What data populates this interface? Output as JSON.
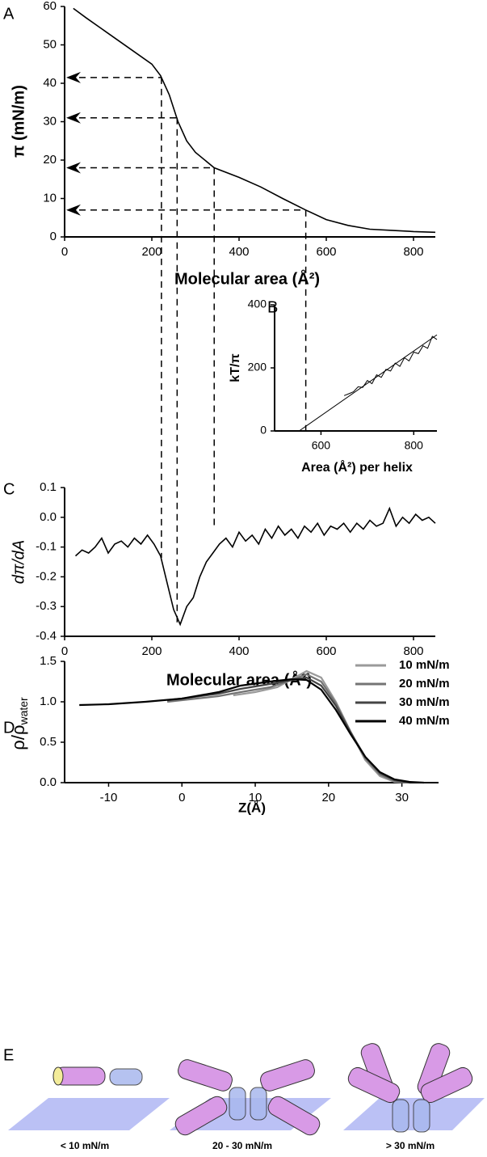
{
  "chart_data": [
    {
      "type": "line",
      "panel": "A",
      "y_label": "π (mN/m)",
      "x_label": "Molecular area (Å²)",
      "xlim": [
        0,
        850
      ],
      "ylim": [
        0,
        60
      ],
      "xticks": [
        0,
        200,
        400,
        600,
        800
      ],
      "yticks": [
        0,
        10,
        20,
        30,
        40,
        50,
        60
      ],
      "series": [
        {
          "color": "#000000",
          "x": [
            20,
            50,
            100,
            150,
            200,
            220,
            240,
            260,
            280,
            300,
            343,
            400,
            450,
            500,
            553,
            600,
            650,
            700,
            750,
            800,
            850
          ],
          "values": [
            59.5,
            57,
            53,
            49,
            45,
            42,
            37,
            30,
            25,
            22,
            18,
            15.5,
            13,
            10,
            7,
            4.5,
            3,
            2,
            1.7,
            1.4,
            1.2
          ]
        }
      ],
      "guides": [
        {
          "x": 222,
          "y": 41.5
        },
        {
          "x": 258,
          "y": 31
        },
        {
          "x": 343,
          "y": 18
        },
        {
          "x": 553,
          "y": 7
        }
      ]
    },
    {
      "type": "line",
      "panel": "B",
      "y_label": "kT/π",
      "x_label": "Area (Å²) per helix",
      "xlim": [
        500,
        850
      ],
      "ylim": [
        0,
        400
      ],
      "xticks": [
        600,
        800
      ],
      "yticks": [
        0,
        200,
        400
      ],
      "series": [
        {
          "color": "#000000",
          "x": [
            650,
            660,
            670,
            680,
            690,
            700,
            710,
            720,
            730,
            740,
            750,
            760,
            770,
            780,
            790,
            800,
            810,
            820,
            830,
            840,
            850
          ],
          "values": [
            112,
            118,
            124,
            140,
            138,
            160,
            150,
            178,
            170,
            195,
            190,
            215,
            205,
            232,
            222,
            250,
            245,
            270,
            262,
            300,
            290
          ]
        },
        {
          "color": "#000000",
          "x": [
            553,
            850
          ],
          "values": [
            0,
            305
          ]
        }
      ]
    },
    {
      "type": "line",
      "panel": "C",
      "y_label": "dπ/dA",
      "x_label": "Molecular area (Å²)",
      "xlim": [
        0,
        850
      ],
      "ylim": [
        -0.4,
        0.1
      ],
      "xticks": [
        0,
        200,
        400,
        600,
        800
      ],
      "yticks": [
        0.1,
        {
          "value": 0,
          "label": "0.0"
        },
        -0.1,
        -0.2,
        -0.3,
        -0.4
      ],
      "series": [
        {
          "color": "#000000",
          "x": [
            25,
            40,
            55,
            70,
            85,
            100,
            115,
            130,
            145,
            160,
            175,
            190,
            205,
            220,
            235,
            250,
            265,
            280,
            295,
            310,
            325,
            340,
            355,
            370,
            385,
            400,
            415,
            430,
            445,
            460,
            475,
            490,
            505,
            520,
            535,
            550,
            565,
            580,
            595,
            610,
            625,
            640,
            655,
            670,
            685,
            700,
            715,
            730,
            745,
            760,
            775,
            790,
            805,
            820,
            835,
            850
          ],
          "values": [
            -0.13,
            -0.11,
            -0.12,
            -0.1,
            -0.07,
            -0.12,
            -0.09,
            -0.08,
            -0.1,
            -0.07,
            -0.09,
            -0.06,
            -0.09,
            -0.13,
            -0.22,
            -0.31,
            -0.36,
            -0.3,
            -0.27,
            -0.2,
            -0.15,
            -0.12,
            -0.09,
            -0.07,
            -0.1,
            -0.05,
            -0.08,
            -0.06,
            -0.09,
            -0.04,
            -0.07,
            -0.03,
            -0.06,
            -0.04,
            -0.07,
            -0.03,
            -0.05,
            -0.02,
            -0.06,
            -0.03,
            -0.04,
            -0.02,
            -0.05,
            -0.02,
            -0.04,
            -0.01,
            -0.03,
            -0.02,
            0.03,
            -0.03,
            0.0,
            -0.02,
            0.01,
            -0.01,
            0.0,
            -0.02
          ]
        }
      ]
    },
    {
      "type": "line",
      "panel": "D",
      "y_label": "ρ/ρ",
      "y_label_sub": "water",
      "x_label": "Z(Å)",
      "xlim": [
        -16,
        35
      ],
      "ylim": [
        0,
        1.5
      ],
      "xticks": [
        -10,
        0,
        10,
        20,
        30
      ],
      "yticks": [
        {
          "value": 0,
          "label": "0.0"
        },
        0.5,
        {
          "value": 1,
          "label": "1.0"
        },
        1.5
      ],
      "series": [
        {
          "name": "10 mN/m",
          "color": "#9a9a9a",
          "x": [
            7,
            10,
            13,
            15,
            17,
            19,
            21,
            23,
            25,
            27,
            29,
            31
          ],
          "values": [
            1.08,
            1.12,
            1.18,
            1.28,
            1.38,
            1.3,
            1.0,
            0.63,
            0.28,
            0.08,
            0.01,
            0.0
          ]
        },
        {
          "name": "20 mN/m",
          "color": "#747474",
          "x": [
            -2,
            0,
            5,
            8,
            12,
            15,
            17,
            19,
            21,
            23,
            25,
            27,
            29,
            31
          ],
          "values": [
            1.0,
            1.02,
            1.07,
            1.12,
            1.18,
            1.27,
            1.34,
            1.25,
            0.98,
            0.63,
            0.3,
            0.1,
            0.02,
            0.0
          ]
        },
        {
          "name": "30 mN/m",
          "color": "#444444",
          "x": [
            -2,
            0,
            5,
            8,
            12,
            15,
            17,
            19,
            21,
            23,
            25,
            27,
            29,
            31
          ],
          "values": [
            1.02,
            1.04,
            1.1,
            1.16,
            1.22,
            1.27,
            1.3,
            1.2,
            0.95,
            0.62,
            0.32,
            0.12,
            0.03,
            0.0
          ]
        },
        {
          "name": "40 mN/m",
          "color": "#000000",
          "x": [
            -14,
            -10,
            -5,
            0,
            5,
            8,
            12,
            15,
            17,
            19,
            21,
            23,
            25,
            27,
            29,
            31,
            33
          ],
          "values": [
            0.96,
            0.97,
            1.0,
            1.04,
            1.12,
            1.2,
            1.25,
            1.28,
            1.27,
            1.15,
            0.9,
            0.6,
            0.32,
            0.13,
            0.04,
            0.01,
            0.0
          ]
        }
      ]
    }
  ],
  "schematic": {
    "panel": "E",
    "labels": [
      "< 10 mN/m",
      "20 - 30 mN/m",
      "> 30 mN/m"
    ]
  }
}
